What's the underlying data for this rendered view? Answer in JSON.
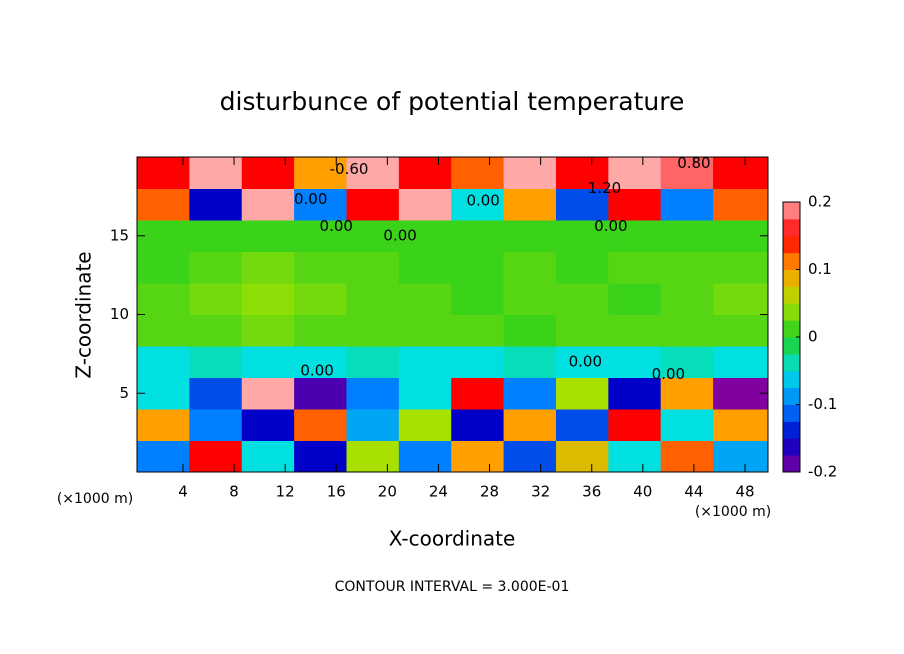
{
  "chart_data": {
    "type": "heatmap",
    "title": "disturbunce of potential temperature",
    "x_label": "X-coordinate",
    "y_label": "Z-coordinate",
    "x_unit": "(×1000 m)",
    "y_unit": "(×1000 m)",
    "footnote": "CONTOUR INTERVAL = 3.000E-01",
    "xlim": [
      0.4,
      49.8
    ],
    "ylim": [
      0,
      20
    ],
    "xticks": [
      4,
      8,
      12,
      16,
      20,
      24,
      28,
      32,
      36,
      40,
      44,
      48
    ],
    "yticks": [
      5,
      10,
      15
    ],
    "xbins": [
      0.4,
      4.5,
      8.6,
      12.7,
      16.8,
      20.9,
      25,
      29.1,
      33.2,
      37.3,
      41.4,
      45.5,
      49.8
    ],
    "ybins": [
      0,
      2,
      4,
      6,
      8,
      10,
      12,
      14,
      16,
      18,
      20
    ],
    "z": [
      [
        -0.1,
        0.15,
        -0.05,
        -0.15,
        0.05,
        -0.1,
        0.1,
        -0.12,
        0.08,
        -0.05,
        0.12,
        -0.08
      ],
      [
        0.1,
        -0.1,
        -0.15,
        0.12,
        -0.08,
        0.05,
        -0.15,
        0.1,
        -0.12,
        0.15,
        -0.05,
        0.1
      ],
      [
        -0.05,
        -0.12,
        0.2,
        -0.18,
        -0.1,
        -0.05,
        0.15,
        -0.1,
        0.05,
        -0.15,
        0.1,
        -0.2
      ],
      [
        -0.05,
        -0.04,
        -0.05,
        -0.05,
        -0.04,
        -0.05,
        -0.05,
        -0.04,
        -0.05,
        -0.05,
        -0.04,
        -0.05
      ],
      [
        0.02,
        0.02,
        0.03,
        0.02,
        0.02,
        0.02,
        0.02,
        0.01,
        0.02,
        0.02,
        0.02,
        0.02
      ],
      [
        0.02,
        0.03,
        0.04,
        0.03,
        0.02,
        0.02,
        0.01,
        0.02,
        0.02,
        0.01,
        0.02,
        0.03
      ],
      [
        0.01,
        0.02,
        0.03,
        0.02,
        0.02,
        0.01,
        0.01,
        0.02,
        0.01,
        0.02,
        0.02,
        0.02
      ],
      [
        0.01,
        0.01,
        0.01,
        0.01,
        0.01,
        0.01,
        0.01,
        0.01,
        0.01,
        0.01,
        0.01,
        0.01
      ],
      [
        0.12,
        -0.15,
        0.2,
        -0.1,
        0.15,
        0.2,
        -0.05,
        0.1,
        -0.12,
        0.15,
        -0.1,
        0.12
      ],
      [
        0.15,
        0.2,
        0.15,
        0.1,
        0.2,
        0.15,
        0.12,
        0.2,
        0.15,
        0.2,
        0.18,
        0.15
      ]
    ],
    "colormap": {
      "values": [
        -0.2,
        -0.15,
        -0.1,
        -0.05,
        0,
        0.05,
        0.1,
        0.15,
        0.2
      ],
      "colors": [
        "#8000a0",
        "#0000c8",
        "#0080ff",
        "#00e0e0",
        "#20d020",
        "#a8e000",
        "#ffa000",
        "#ff0000",
        "#ffa8a8"
      ]
    },
    "colorbar_lim": [
      -0.2,
      0.2
    ],
    "colorbar_ticks": [
      -0.2,
      -0.1,
      0,
      0.1,
      0.2
    ],
    "contour_labels": [
      {
        "label": "-0.60",
        "x": 17,
        "y": 19.2
      },
      {
        "label": "0.80",
        "x": 44,
        "y": 19.6
      },
      {
        "label": "1.20",
        "x": 37,
        "y": 18
      },
      {
        "label": "0.00",
        "x": 14,
        "y": 17.3
      },
      {
        "label": "0.00",
        "x": 27.5,
        "y": 17.2
      },
      {
        "label": "0.00",
        "x": 16,
        "y": 15.6
      },
      {
        "label": "0.00",
        "x": 21,
        "y": 15
      },
      {
        "label": "0.00",
        "x": 37.5,
        "y": 15.6
      },
      {
        "label": "0.00",
        "x": 35.5,
        "y": 7
      },
      {
        "label": "0.00",
        "x": 14.5,
        "y": 6.4
      },
      {
        "label": "0.00",
        "x": 42,
        "y": 6.2
      }
    ]
  }
}
